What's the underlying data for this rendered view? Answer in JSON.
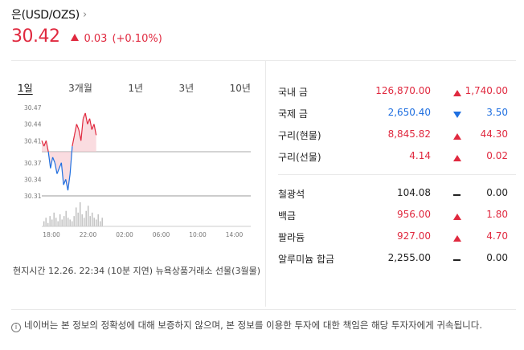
{
  "header": {
    "title": "은(USD/OZS)",
    "chevron": "›",
    "price": "30.42",
    "change": "0.03",
    "change_pct": "(+0.10%)"
  },
  "tabs": [
    {
      "label": "1일",
      "active": true
    },
    {
      "label": "3개월",
      "active": false
    },
    {
      "label": "1년",
      "active": false
    },
    {
      "label": "3년",
      "active": false
    },
    {
      "label": "10년",
      "active": false
    }
  ],
  "chart_data": {
    "type": "line",
    "y_ticks": [
      "30.47",
      "30.44",
      "30.41",
      "30.37",
      "30.34",
      "30.31"
    ],
    "x_ticks": [
      "18:00",
      "22:00",
      "02:00",
      "06:00",
      "10:00",
      "14:00"
    ],
    "reference_value": 30.39,
    "series": [
      {
        "color_up": "#e0293f",
        "color_down": "#1f6fe0",
        "x": [
          0,
          0.25,
          0.5,
          0.75,
          1,
          1.25,
          1.5,
          1.75,
          2,
          2.25,
          2.5,
          2.75,
          3,
          3.25,
          3.5,
          3.75,
          4,
          4.25,
          4.5,
          4.75,
          5,
          5.25,
          5.5,
          5.75,
          6,
          6.25
        ],
        "y": [
          30.41,
          30.4,
          30.41,
          30.39,
          30.36,
          30.38,
          30.37,
          30.35,
          30.36,
          30.37,
          30.33,
          30.34,
          30.32,
          30.35,
          30.4,
          30.42,
          30.44,
          30.43,
          30.41,
          30.45,
          30.46,
          30.44,
          30.45,
          30.43,
          30.44,
          30.42
        ]
      }
    ],
    "volume": [
      3,
      5,
      2,
      6,
      4,
      8,
      5,
      3,
      7,
      4,
      6,
      9,
      5,
      4,
      3,
      6,
      11,
      8,
      14,
      7,
      5,
      9,
      12,
      6,
      8,
      5,
      4,
      7,
      3,
      5
    ]
  },
  "note": "현지시간 12.26. 22:34 (10분 지연) 뉴욕상품거래소 선물(3월물)",
  "table": {
    "group1": [
      {
        "name": "국내 금",
        "value": "126,870.00",
        "dir": "up",
        "change": "1,740.00"
      },
      {
        "name": "국제 금",
        "value": "2,650.40",
        "dir": "down",
        "change": "3.50"
      },
      {
        "name": "구리(현물)",
        "value": "8,845.82",
        "dir": "up",
        "change": "44.30"
      },
      {
        "name": "구리(선물)",
        "value": "4.14",
        "dir": "up",
        "change": "0.02"
      }
    ],
    "group2": [
      {
        "name": "철광석",
        "value": "104.08",
        "dir": "flat",
        "change": "0.00"
      },
      {
        "name": "백금",
        "value": "956.00",
        "dir": "up",
        "change": "1.80"
      },
      {
        "name": "팔라듐",
        "value": "927.00",
        "dir": "up",
        "change": "4.70"
      },
      {
        "name": "알루미늄 합금",
        "value": "2,255.00",
        "dir": "flat",
        "change": "0.00"
      }
    ]
  },
  "disclaimer": {
    "icon": "info-icon",
    "text": "네이버는 본 정보의 정확성에 대해 보증하지 않으며, 본 정보를 이용한 투자에 대한 책임은 해당 투자자에게 귀속됩니다."
  }
}
